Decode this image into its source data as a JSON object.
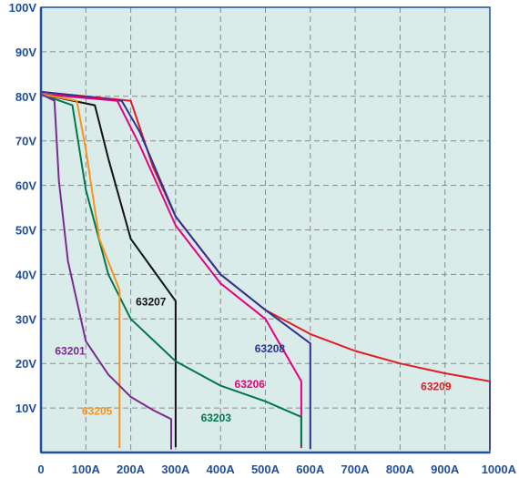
{
  "chart_data": {
    "type": "line",
    "title": "",
    "xlabel": "",
    "ylabel": "",
    "xlim": [
      0,
      1000
    ],
    "ylim": [
      0,
      100
    ],
    "grid": true,
    "background_color": "#d9ecea",
    "axis_color": "#1f4e9b",
    "x_ticks": [
      {
        "value": 0,
        "label": "0"
      },
      {
        "value": 100,
        "label": "100A"
      },
      {
        "value": 200,
        "label": "200A"
      },
      {
        "value": 300,
        "label": "300A"
      },
      {
        "value": 400,
        "label": "400A"
      },
      {
        "value": 500,
        "label": "500A"
      },
      {
        "value": 600,
        "label": "600A"
      },
      {
        "value": 700,
        "label": "700A"
      },
      {
        "value": 800,
        "label": "800A"
      },
      {
        "value": 900,
        "label": "900A"
      },
      {
        "value": 1000,
        "label": "1000A"
      }
    ],
    "y_ticks": [
      {
        "value": 10,
        "label": "10V"
      },
      {
        "value": 20,
        "label": "20V"
      },
      {
        "value": 30,
        "label": "30V"
      },
      {
        "value": 40,
        "label": "40V"
      },
      {
        "value": 50,
        "label": "50V"
      },
      {
        "value": 60,
        "label": "60V"
      },
      {
        "value": 70,
        "label": "70V"
      },
      {
        "value": 80,
        "label": "80V"
      },
      {
        "value": 90,
        "label": "90V"
      },
      {
        "value": 100,
        "label": "100V"
      }
    ],
    "series": [
      {
        "name": "63209",
        "color": "#e01c24",
        "label_at": [
          880,
          14
        ],
        "points": [
          [
            0,
            0.6
          ],
          [
            0,
            81
          ],
          [
            200,
            79
          ],
          [
            250,
            64
          ],
          [
            300,
            53
          ],
          [
            400,
            40
          ],
          [
            500,
            32
          ],
          [
            600,
            26.6
          ],
          [
            700,
            22.8
          ],
          [
            800,
            20
          ],
          [
            900,
            17.8
          ],
          [
            1000,
            16
          ],
          [
            1000,
            0.6
          ]
        ]
      },
      {
        "name": "63208",
        "color": "#2e3192",
        "label_at": [
          510,
          22.5
        ],
        "points": [
          [
            0,
            0.8
          ],
          [
            0,
            81
          ],
          [
            180,
            79
          ],
          [
            220,
            72
          ],
          [
            300,
            53
          ],
          [
            400,
            40
          ],
          [
            500,
            32
          ],
          [
            600,
            24.5
          ],
          [
            600,
            0.8
          ]
        ]
      },
      {
        "name": "63206",
        "color": "#e6007e",
        "label_at": [
          465,
          14.5
        ],
        "points": [
          [
            0,
            1
          ],
          [
            0,
            80.5
          ],
          [
            170,
            79
          ],
          [
            220,
            69
          ],
          [
            300,
            51
          ],
          [
            400,
            38
          ],
          [
            500,
            30
          ],
          [
            580,
            16
          ],
          [
            580,
            1
          ]
        ]
      },
      {
        "name": "63207",
        "color": "#111111",
        "label_at": [
          245,
          33
        ],
        "points": [
          [
            0,
            1.2
          ],
          [
            0,
            80.5
          ],
          [
            120,
            78
          ],
          [
            150,
            66
          ],
          [
            200,
            48
          ],
          [
            250,
            41
          ],
          [
            300,
            34
          ],
          [
            300,
            1.2
          ]
        ]
      },
      {
        "name": "63203",
        "color": "#00774a",
        "label_at": [
          390,
          7
        ],
        "points": [
          [
            0,
            1.5
          ],
          [
            0,
            80.5
          ],
          [
            70,
            78
          ],
          [
            100,
            59
          ],
          [
            150,
            40
          ],
          [
            200,
            30
          ],
          [
            300,
            20.5
          ],
          [
            400,
            15
          ],
          [
            500,
            11.5
          ],
          [
            580,
            8
          ],
          [
            580,
            1.5
          ]
        ]
      },
      {
        "name": "63205",
        "color": "#f7931e",
        "label_at": [
          125,
          8.5
        ],
        "points": [
          [
            0,
            1
          ],
          [
            0,
            80.5
          ],
          [
            80,
            79
          ],
          [
            100,
            68
          ],
          [
            130,
            48
          ],
          [
            175,
            36.5
          ],
          [
            175,
            1
          ]
        ]
      },
      {
        "name": "63201",
        "color": "#7b2a90",
        "label_at": [
          65,
          22
        ],
        "points": [
          [
            0,
            0.7
          ],
          [
            0,
            80.5
          ],
          [
            30,
            79
          ],
          [
            40,
            61
          ],
          [
            60,
            43
          ],
          [
            100,
            25
          ],
          [
            150,
            17.5
          ],
          [
            200,
            12.5
          ],
          [
            250,
            9.5
          ],
          [
            290,
            7.5
          ],
          [
            290,
            0.7
          ]
        ]
      }
    ]
  }
}
